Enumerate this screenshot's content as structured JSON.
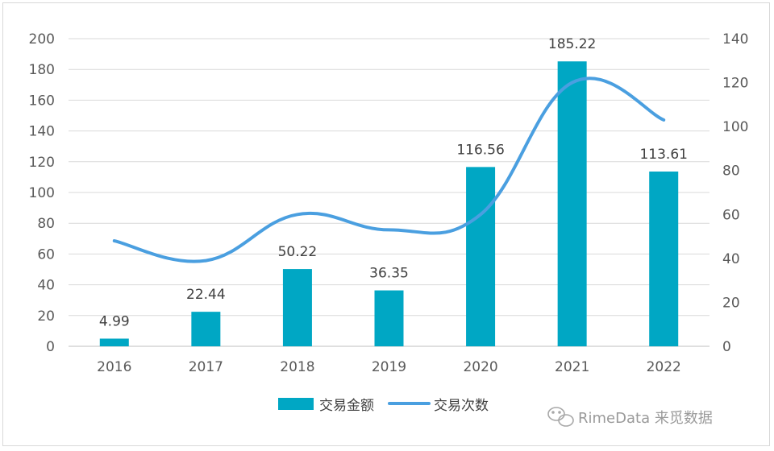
{
  "chart_data": {
    "type": "bar",
    "categories": [
      "2016",
      "2017",
      "2018",
      "2019",
      "2020",
      "2021",
      "2022"
    ],
    "series": [
      {
        "name": "交易金额",
        "kind": "bar",
        "axis": "left",
        "values": [
          4.99,
          22.44,
          50.22,
          36.35,
          116.56,
          185.22,
          113.61
        ],
        "labels": [
          "4.99",
          "22.44",
          "50.22",
          "36.35",
          "116.56",
          "185.22",
          "113.61"
        ],
        "color": "#00A7C4"
      },
      {
        "name": "交易次数",
        "kind": "line",
        "axis": "right",
        "values": [
          48,
          39,
          60,
          53,
          60,
          120,
          103
        ],
        "color": "#4A9FE0"
      }
    ],
    "left_axis": {
      "min": 0,
      "max": 200,
      "step": 20,
      "ticks": [
        "0",
        "20",
        "40",
        "60",
        "80",
        "100",
        "120",
        "140",
        "160",
        "180",
        "200"
      ]
    },
    "right_axis": {
      "min": 0,
      "max": 140,
      "step": 20,
      "ticks": [
        "0",
        "20",
        "40",
        "60",
        "80",
        "100",
        "120",
        "140"
      ]
    },
    "grid": true,
    "legend_position": "bottom"
  },
  "watermark": {
    "text": "RimeData 来觅数据",
    "icon": "wechat-icon"
  }
}
